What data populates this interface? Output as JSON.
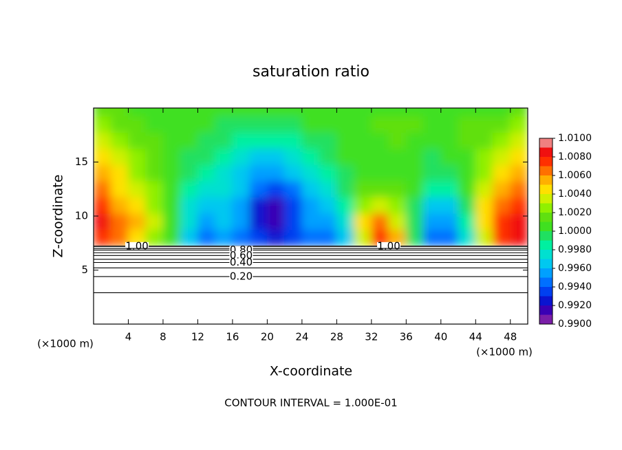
{
  "chart_data": {
    "type": "contour",
    "title": "saturation ratio",
    "xlabel": "X-coordinate",
    "ylabel": "Z-coordinate",
    "x_unit": "(×1000 m)",
    "annotation": "CONTOUR INTERVAL = 1.000E-01",
    "xlim": [
      0,
      50
    ],
    "ylim": [
      0,
      20
    ],
    "xticks": [
      4,
      8,
      12,
      16,
      20,
      24,
      28,
      32,
      36,
      40,
      44,
      48
    ],
    "yticks": [
      5,
      10,
      15
    ],
    "x": [
      1,
      3,
      5,
      7,
      9,
      11,
      13,
      15,
      17,
      19,
      21,
      23,
      25,
      27,
      29,
      31,
      33,
      35,
      37,
      39,
      41,
      43,
      45,
      47,
      49
    ],
    "y": [
      8,
      9.5,
      11,
      12.5,
      14,
      15.5,
      17,
      18.5,
      20
    ],
    "z": [
      [
        1.007,
        1.006,
        1.004,
        1.002,
        1.0,
        0.996,
        0.994,
        0.995,
        0.994,
        0.993,
        0.992,
        0.993,
        0.994,
        0.994,
        0.996,
        1.003,
        1.007,
        1.005,
        0.999,
        0.994,
        0.994,
        0.997,
        1.003,
        1.007,
        1.008
      ],
      [
        1.008,
        1.006,
        1.005,
        1.003,
        1.0,
        0.997,
        0.995,
        0.996,
        0.995,
        0.992,
        0.991,
        0.993,
        0.995,
        0.995,
        0.997,
        1.004,
        1.006,
        1.003,
        0.999,
        0.995,
        0.995,
        0.998,
        1.004,
        1.007,
        1.008
      ],
      [
        1.007,
        1.005,
        1.004,
        1.002,
        1.0,
        0.997,
        0.996,
        0.996,
        0.995,
        0.992,
        0.991,
        0.993,
        0.995,
        0.996,
        0.998,
        1.002,
        1.003,
        1.002,
        0.999,
        0.996,
        0.996,
        0.999,
        1.004,
        1.006,
        1.007
      ],
      [
        1.006,
        1.004,
        1.003,
        1.002,
        1.0,
        0.998,
        0.997,
        0.997,
        0.996,
        0.994,
        0.993,
        0.994,
        0.996,
        0.997,
        0.999,
        1.001,
        1.001,
        1.001,
        1.0,
        0.998,
        0.998,
        1.0,
        1.003,
        1.005,
        1.006
      ],
      [
        1.005,
        1.004,
        1.002,
        1.001,
        1.0,
        0.999,
        0.998,
        0.997,
        0.996,
        0.995,
        0.995,
        0.996,
        0.997,
        0.998,
        0.999,
        1.0,
        1.0,
        1.0,
        1.0,
        0.999,
        0.999,
        1.0,
        1.002,
        1.004,
        1.005
      ],
      [
        1.004,
        1.003,
        1.002,
        1.001,
        1.0,
        0.999,
        0.999,
        0.998,
        0.997,
        0.996,
        0.996,
        0.997,
        0.998,
        0.999,
        1.0,
        1.0,
        1.0,
        1.0,
        1.0,
        0.999,
        1.0,
        1.0,
        1.002,
        1.003,
        1.004
      ],
      [
        1.003,
        1.002,
        1.001,
        1.001,
        1.0,
        1.0,
        0.999,
        0.999,
        0.998,
        0.998,
        0.998,
        0.998,
        0.999,
        0.999,
        1.0,
        1.0,
        1.0,
        1.001,
        1.0,
        1.0,
        1.0,
        1.001,
        1.001,
        1.002,
        1.003
      ],
      [
        1.002,
        1.001,
        1.001,
        1.0,
        1.0,
        1.0,
        1.0,
        0.999,
        0.999,
        0.999,
        0.999,
        0.999,
        1.0,
        1.0,
        1.0,
        1.0,
        1.001,
        1.001,
        1.001,
        1.0,
        1.0,
        1.001,
        1.001,
        1.001,
        1.002
      ],
      [
        1.001,
        1.001,
        1.0,
        1.0,
        1.0,
        1.0,
        1.0,
        1.0,
        1.0,
        1.0,
        1.0,
        1.0,
        1.0,
        1.0,
        1.0,
        1.0,
        1.0,
        1.0,
        1.0,
        1.0,
        1.0,
        1.0,
        1.0,
        1.0,
        1.001
      ]
    ],
    "contours": [
      {
        "label": "1.00",
        "z": 7.2
      },
      {
        "z": 7.0
      },
      {
        "label": "0.80",
        "z": 6.85
      },
      {
        "z": 6.6
      },
      {
        "label": "0.60",
        "z": 6.35
      },
      {
        "z": 6.0
      },
      {
        "label": "0.40",
        "z": 5.7
      },
      {
        "z": 5.2
      },
      {
        "label": "0.20",
        "z": 4.4
      },
      {
        "z": 2.9
      }
    ],
    "colorbar": {
      "lim": [
        0.99,
        1.01
      ],
      "colors": [
        "#7a1ea8",
        "#3a00b4",
        "#0a14d0",
        "#0040f0",
        "#0070ff",
        "#00a0ff",
        "#00c8f0",
        "#00e0d0",
        "#00f0a0",
        "#20e060",
        "#40e020",
        "#60e010",
        "#90f000",
        "#d0f000",
        "#ffe000",
        "#ffb000",
        "#ff7000",
        "#ff3000",
        "#f01010",
        "#f08080"
      ],
      "ticks": [
        {
          "value": 0.99,
          "label": "0.9900"
        },
        {
          "value": 0.992,
          "label": "0.9920"
        },
        {
          "value": 0.994,
          "label": "0.9940"
        },
        {
          "value": 0.996,
          "label": "0.9960"
        },
        {
          "value": 0.998,
          "label": "0.9980"
        },
        {
          "value": 1.0,
          "label": "1.0000"
        },
        {
          "value": 1.002,
          "label": "1.0020"
        },
        {
          "value": 1.004,
          "label": "1.0040"
        },
        {
          "value": 1.006,
          "label": "1.0060"
        },
        {
          "value": 1.008,
          "label": "1.0080"
        },
        {
          "value": 1.01,
          "label": "1.0100"
        }
      ]
    }
  }
}
